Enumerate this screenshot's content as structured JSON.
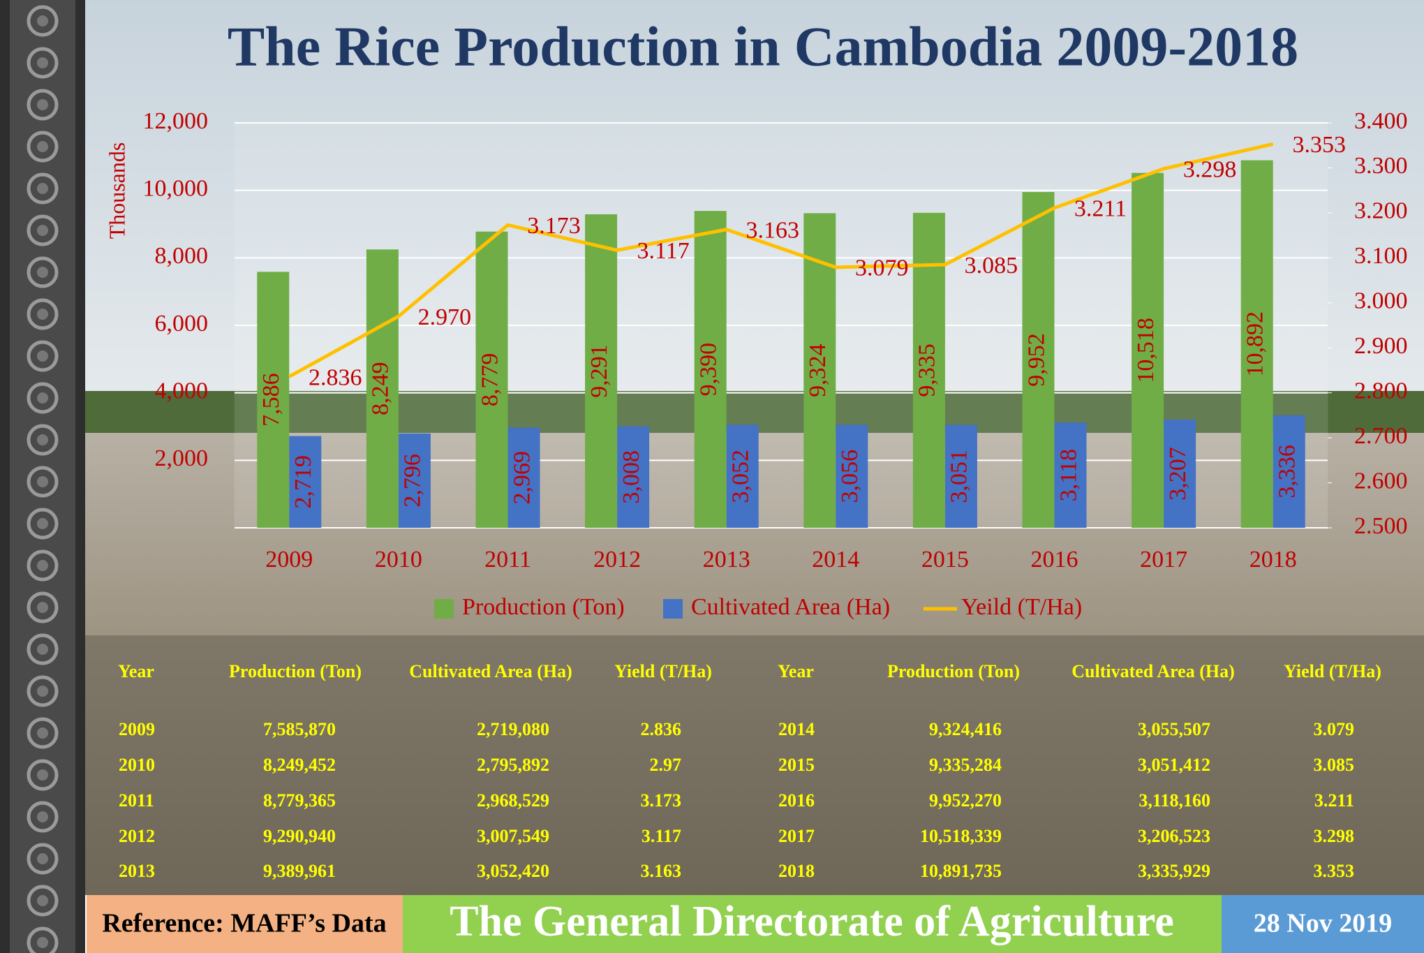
{
  "chart_data": {
    "type": "bar",
    "title": "The Rice Production in Cambodia 2009-2018",
    "y_label": "Thousands",
    "categories": [
      "2009",
      "2010",
      "2011",
      "2012",
      "2013",
      "2014",
      "2015",
      "2016",
      "2017",
      "2018"
    ],
    "series": [
      {
        "name": "Production (Ton)",
        "color": "#70ad47",
        "type": "bar",
        "values": [
          7586,
          8249,
          8779,
          9291,
          9390,
          9324,
          9335,
          9952,
          10518,
          10892
        ],
        "value_labels": [
          "7,586",
          "8,249",
          "8,779",
          "9,291",
          "9,390",
          "9,324",
          "9,335",
          "9,952",
          "10,518",
          "10,892"
        ]
      },
      {
        "name": "Cultivated Area (Ha)",
        "color": "#4472c4",
        "type": "bar",
        "values": [
          2719,
          2796,
          2969,
          3008,
          3052,
          3056,
          3051,
          3118,
          3207,
          3336
        ],
        "value_labels": [
          "2,719",
          "2,796",
          "2,969",
          "3,008",
          "3,052",
          "3,056",
          "3,051",
          "3,118",
          "3,207",
          "3,336"
        ]
      },
      {
        "name": "Yeild (T/Ha)",
        "color": "#ffc000",
        "type": "line",
        "axis": "y2",
        "values": [
          2.836,
          2.97,
          3.173,
          3.117,
          3.163,
          3.079,
          3.085,
          3.211,
          3.298,
          3.353
        ],
        "value_labels": [
          "2.836",
          "2.970",
          "3.173",
          "3.117",
          "3.163",
          "3.079",
          "3.085",
          "3.211",
          "3.298",
          "3.353"
        ]
      }
    ],
    "ylim": [
      0,
      12000
    ],
    "yticks": [
      {
        "value": 2000,
        "label": "2,000"
      },
      {
        "value": 4000,
        "label": "4,000"
      },
      {
        "value": 6000,
        "label": "6,000"
      },
      {
        "value": 8000,
        "label": "8,000"
      },
      {
        "value": 10000,
        "label": "10,000"
      },
      {
        "value": 12000,
        "label": "12,000"
      }
    ],
    "y2lim": [
      2.5,
      3.4
    ],
    "y2ticks": [
      {
        "value": 2.5,
        "label": "2.500"
      },
      {
        "value": 2.6,
        "label": "2.600"
      },
      {
        "value": 2.7,
        "label": "2.700"
      },
      {
        "value": 2.8,
        "label": "2.800"
      },
      {
        "value": 2.9,
        "label": "2.900"
      },
      {
        "value": 3.0,
        "label": "3.000"
      },
      {
        "value": 3.1,
        "label": "3.100"
      },
      {
        "value": 3.2,
        "label": "3.200"
      },
      {
        "value": 3.3,
        "label": "3.300"
      },
      {
        "value": 3.4,
        "label": "3.400"
      }
    ],
    "grid": true,
    "legend": "bottom"
  },
  "table": {
    "header": [
      "Year",
      "Production (Ton)",
      "Cultivated Area (Ha)",
      "Yield (T/Ha)",
      "Year",
      "Production  (Ton)",
      "Cultivated Area (Ha)",
      "Yield (T/Ha)"
    ],
    "rows": [
      [
        "2009",
        "7,585,870",
        "2,719,080",
        "2.836",
        "2014",
        "9,324,416",
        "3,055,507",
        "3.079"
      ],
      [
        "2010",
        "8,249,452",
        "2,795,892",
        "2.97",
        "2015",
        "9,335,284",
        "3,051,412",
        "3.085"
      ],
      [
        "2011",
        "8,779,365",
        "2,968,529",
        "3.173",
        "2016",
        "9,952,270",
        "3,118,160",
        "3.211"
      ],
      [
        "2012",
        "9,290,940",
        "3,007,549",
        "3.117",
        "2017",
        "10,518,339",
        "3,206,523",
        "3.298"
      ],
      [
        "2013",
        "9,389,961",
        "3,052,420",
        "3.163",
        "2018",
        "10,891,735",
        "3,335,929",
        "3.353"
      ]
    ]
  },
  "footer": {
    "reference": "Reference: MAFF’s Data",
    "organization": "The General Directorate of Agriculture",
    "date": "28 Nov 2019"
  }
}
